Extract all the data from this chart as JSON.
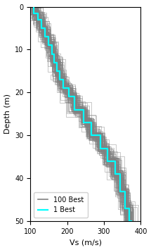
{
  "xlim": [
    100,
    400
  ],
  "ylim": [
    50,
    0
  ],
  "xlabel": "Vs (m/s)",
  "ylabel": "Depth (m)",
  "xticks": [
    100,
    200,
    300,
    400
  ],
  "yticks": [
    0,
    10,
    20,
    30,
    40,
    50
  ],
  "gray_color": "#808080",
  "best_color": "#00ffff",
  "gray_alpha": 0.6,
  "gray_lw": 0.5,
  "best_lw": 1.6,
  "n_profiles": 100,
  "seed": 42,
  "figsize": [
    2.15,
    3.55
  ],
  "dpi": 100,
  "legend_loc": "lower left",
  "legend_fontsize": 7,
  "depth_nodes_best": [
    0,
    1.5,
    3,
    5,
    7,
    9,
    11,
    13,
    15,
    17,
    19,
    21,
    24,
    27,
    30,
    33,
    36,
    39,
    43,
    47,
    50
  ],
  "vs_nodes_best": [
    110,
    120,
    130,
    140,
    150,
    158,
    165,
    172,
    180,
    190,
    205,
    220,
    245,
    265,
    290,
    310,
    330,
    345,
    358,
    368,
    375
  ],
  "vs_noise_std": 8,
  "depth_noise_std": 0.8
}
